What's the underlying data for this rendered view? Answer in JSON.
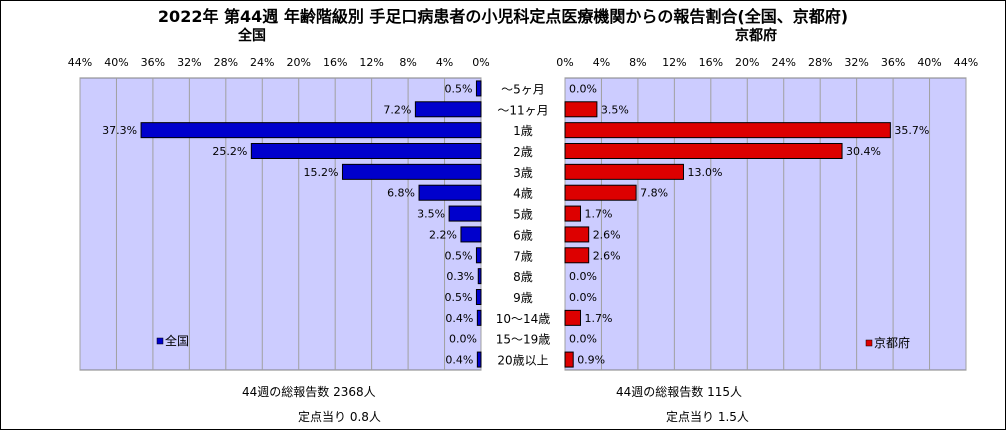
{
  "title": "2022年 第44週  年齢階級別 手足口病患者の小児科定点医療機関からの報告割合(全国、京都府)",
  "chart_data": [
    {
      "type": "bar",
      "orientation": "horizontal",
      "title": "全国",
      "legend": "全国",
      "legend_position": "bottom-left",
      "color": "#0000cc",
      "xlim": [
        0,
        44
      ],
      "ticks": [
        44,
        40,
        36,
        32,
        28,
        24,
        20,
        16,
        12,
        8,
        4,
        0
      ],
      "tick_labels": [
        "44%",
        "40%",
        "36%",
        "32%",
        "28%",
        "24%",
        "20%",
        "16%",
        "12%",
        "8%",
        "4%",
        "0%"
      ],
      "direction": "reversed",
      "categories": [
        "～5ヶ月",
        "～11ヶ月",
        "1歳",
        "2歳",
        "3歳",
        "4歳",
        "5歳",
        "6歳",
        "7歳",
        "8歳",
        "9歳",
        "10～14歳",
        "15～19歳",
        "20歳以上"
      ],
      "values": [
        0.5,
        7.2,
        37.3,
        25.2,
        15.2,
        6.8,
        3.5,
        2.2,
        0.5,
        0.3,
        0.5,
        0.4,
        0.0,
        0.4
      ],
      "value_labels": [
        "0.5%",
        "7.2%",
        "37.3%",
        "25.2%",
        "15.2%",
        "6.8%",
        "3.5%",
        "2.2%",
        "0.5%",
        "0.3%",
        "0.5%",
        "0.4%",
        "0.0%",
        "0.4%"
      ],
      "grid": true
    },
    {
      "type": "bar",
      "orientation": "horizontal",
      "title": "京都府",
      "legend": "京都府",
      "legend_position": "bottom-right",
      "color": "#dd0000",
      "xlim": [
        0,
        44
      ],
      "ticks": [
        0,
        4,
        8,
        12,
        16,
        20,
        24,
        28,
        32,
        36,
        40,
        44
      ],
      "tick_labels": [
        "0%",
        "4%",
        "8%",
        "12%",
        "16%",
        "20%",
        "24%",
        "28%",
        "32%",
        "36%",
        "40%",
        "44%"
      ],
      "direction": "normal",
      "categories": [
        "～5ヶ月",
        "～11ヶ月",
        "1歳",
        "2歳",
        "3歳",
        "4歳",
        "5歳",
        "6歳",
        "7歳",
        "8歳",
        "9歳",
        "10～14歳",
        "15～19歳",
        "20歳以上"
      ],
      "values": [
        0.0,
        3.5,
        35.7,
        30.4,
        13.0,
        7.8,
        1.7,
        2.6,
        2.6,
        0.0,
        0.0,
        1.7,
        0.0,
        0.9
      ],
      "value_labels": [
        "0.0%",
        "3.5%",
        "35.7%",
        "30.4%",
        "13.0%",
        "7.8%",
        "1.7%",
        "2.6%",
        "2.6%",
        "0.0%",
        "0.0%",
        "1.7%",
        "0.0%",
        "0.9%"
      ],
      "grid": true
    }
  ],
  "footer": {
    "left_total": "44週の総報告数   2368人",
    "left_per": "定点当り   0.8人",
    "right_total": "44週の総報告数   115人",
    "right_per": "定点当り   1.5人"
  },
  "colors": {
    "plot_bg": "#ccccff",
    "left_bar": "#0000cc",
    "right_bar": "#dd0000"
  }
}
